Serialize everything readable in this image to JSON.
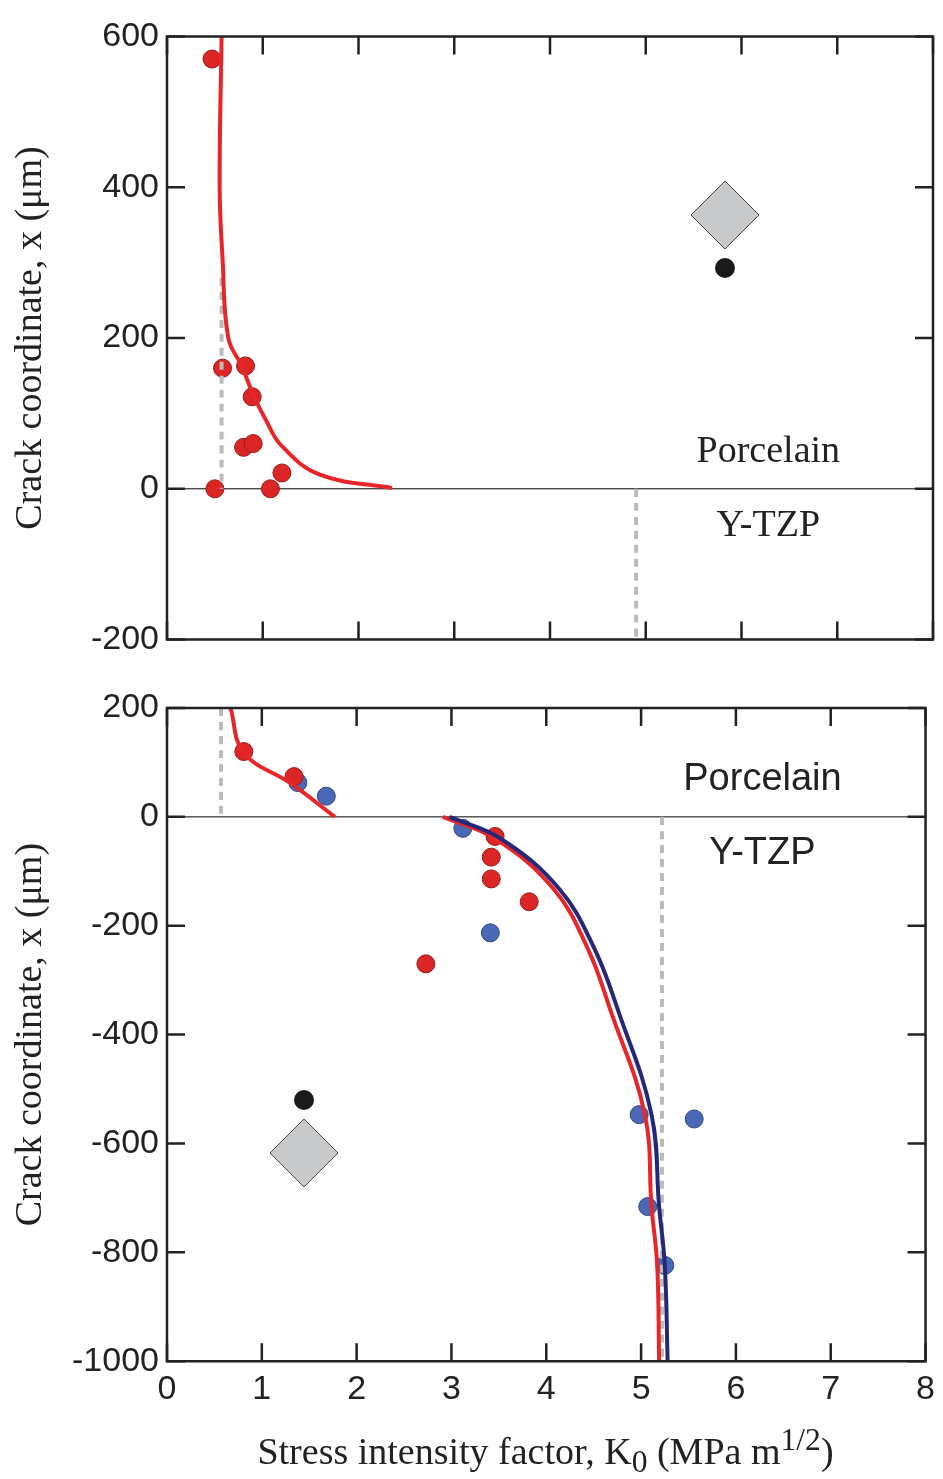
{
  "chart_data": [
    {
      "type": "scatter",
      "ylabel": "Crack coordinate, x (μm)",
      "xlim": [
        0,
        8
      ],
      "ylim": [
        -200,
        600
      ],
      "xticks": [
        0,
        1,
        2,
        3,
        4,
        5,
        6,
        7,
        8
      ],
      "yticks": [
        -200,
        0,
        200,
        400,
        600
      ],
      "tick_labels": "y",
      "grid": false,
      "marker": "circle",
      "annotations": [
        "Porcelain",
        "Y-TZP"
      ],
      "ref_lines": [
        {
          "axis": "y",
          "value": 0,
          "color": "#000000"
        }
      ],
      "series": [
        {
          "type": "line",
          "color": "#e8262a",
          "marker": "none",
          "x": [
            0.57,
            0.55,
            0.58,
            0.64,
            0.78,
            0.91,
            1.03,
            1.19,
            1.59,
            2.35
          ],
          "values": [
            600,
            400,
            306,
            200,
            163,
            122,
            92,
            58,
            19,
            1
          ]
        },
        {
          "type": "line",
          "color": "#bbbbbb",
          "marker": "none",
          "line_style": "dashed",
          "x": [
            0.57,
            0.57
          ],
          "values": [
            280,
            0
          ]
        },
        {
          "type": "line",
          "color": "#bbbbbb",
          "marker": "none",
          "line_style": "dashed",
          "x": [
            4.9,
            4.9
          ],
          "values": [
            0,
            -200
          ]
        },
        {
          "type": "scatter",
          "color": "#dc2626",
          "x": [
            0.47,
            0.58,
            0.82,
            0.89,
            0.8,
            0.9,
            1.2,
            0.5,
            1.08
          ],
          "values": [
            570,
            160,
            163,
            122,
            55,
            60,
            21,
            0,
            0
          ]
        }
      ]
    },
    {
      "type": "scatter",
      "ylabel": "Crack coordinate, x (μm)",
      "xlabel": "Stress intensity factor, K$_{0}$ (MPa m$^{1/2}$)",
      "xlim": [
        0,
        8
      ],
      "ylim": [
        -1000,
        200
      ],
      "xticks": [
        0,
        1,
        2,
        3,
        4,
        5,
        6,
        7,
        8
      ],
      "yticks": [
        -1000,
        -800,
        -600,
        -400,
        -200,
        0,
        200
      ],
      "grid": false,
      "marker": "circle",
      "annotations": [
        "Porcelain",
        "Y-TZP"
      ],
      "ref_lines": [
        {
          "axis": "y",
          "value": 0,
          "color": "#000000"
        }
      ],
      "series": [
        {
          "type": "line",
          "color": "#e8262a",
          "marker": "none",
          "x": [
            0.67,
            0.81,
            1.31,
            1.77
          ],
          "values": [
            200,
            118,
            61,
            0
          ]
        },
        {
          "type": "line",
          "color": "#232878",
          "marker": "none",
          "x": [
            2.98,
            3.52,
            4.14,
            4.51,
            4.76,
            5.11,
            5.19,
            5.25,
            5.28
          ],
          "values": [
            0,
            -40,
            -133,
            -243,
            -357,
            -547,
            -716,
            -824,
            -1000
          ]
        },
        {
          "type": "line",
          "color": "#e8262a",
          "marker": "none",
          "x": [
            2.91,
            3.46,
            4.08,
            4.44,
            4.68,
            5.04,
            5.11,
            5.17,
            5.19
          ],
          "values": [
            0,
            -40,
            -133,
            -243,
            -357,
            -547,
            -716,
            -824,
            -1000
          ]
        },
        {
          "type": "line",
          "color": "#bbbbbb",
          "marker": "none",
          "line_style": "dashed",
          "x": [
            0.57,
            0.57
          ],
          "values": [
            200,
            0
          ]
        },
        {
          "type": "line",
          "color": "#bbbbbb",
          "marker": "none",
          "line_style": "dashed",
          "x": [
            5.22,
            5.22
          ],
          "values": [
            0,
            -1000
          ]
        },
        {
          "type": "scatter",
          "color": "#dc2626",
          "x": [
            0.81,
            1.34,
            3.46,
            3.42,
            3.42,
            3.82,
            2.73
          ],
          "values": [
            120,
            74,
            -36,
            -74,
            -114,
            -156,
            -270
          ]
        },
        {
          "type": "scatter",
          "color": "#4a68b8",
          "x": [
            1.38,
            1.68,
            3.12,
            3.41,
            4.98,
            5.56,
            5.07,
            5.25
          ],
          "values": [
            63,
            38,
            -21,
            -213,
            -547,
            -555,
            -716,
            -824
          ]
        }
      ]
    }
  ]
}
